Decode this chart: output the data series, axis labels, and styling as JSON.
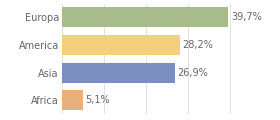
{
  "categories": [
    "Europa",
    "America",
    "Asia",
    "Africa"
  ],
  "values": [
    39.7,
    28.2,
    26.9,
    5.1
  ],
  "labels": [
    "39,7%",
    "28,2%",
    "26,9%",
    "5,1%"
  ],
  "bar_colors": [
    "#a8bb8a",
    "#f5d07a",
    "#7a8fbf",
    "#e8b07a"
  ],
  "background_color": "#ffffff",
  "xlim": [
    0,
    44
  ],
  "bar_height": 0.72,
  "label_fontsize": 7.0,
  "tick_fontsize": 7.0,
  "grid_color": "#dddddd",
  "grid_x": [
    0,
    10,
    20,
    30,
    40
  ],
  "text_color": "#666666"
}
